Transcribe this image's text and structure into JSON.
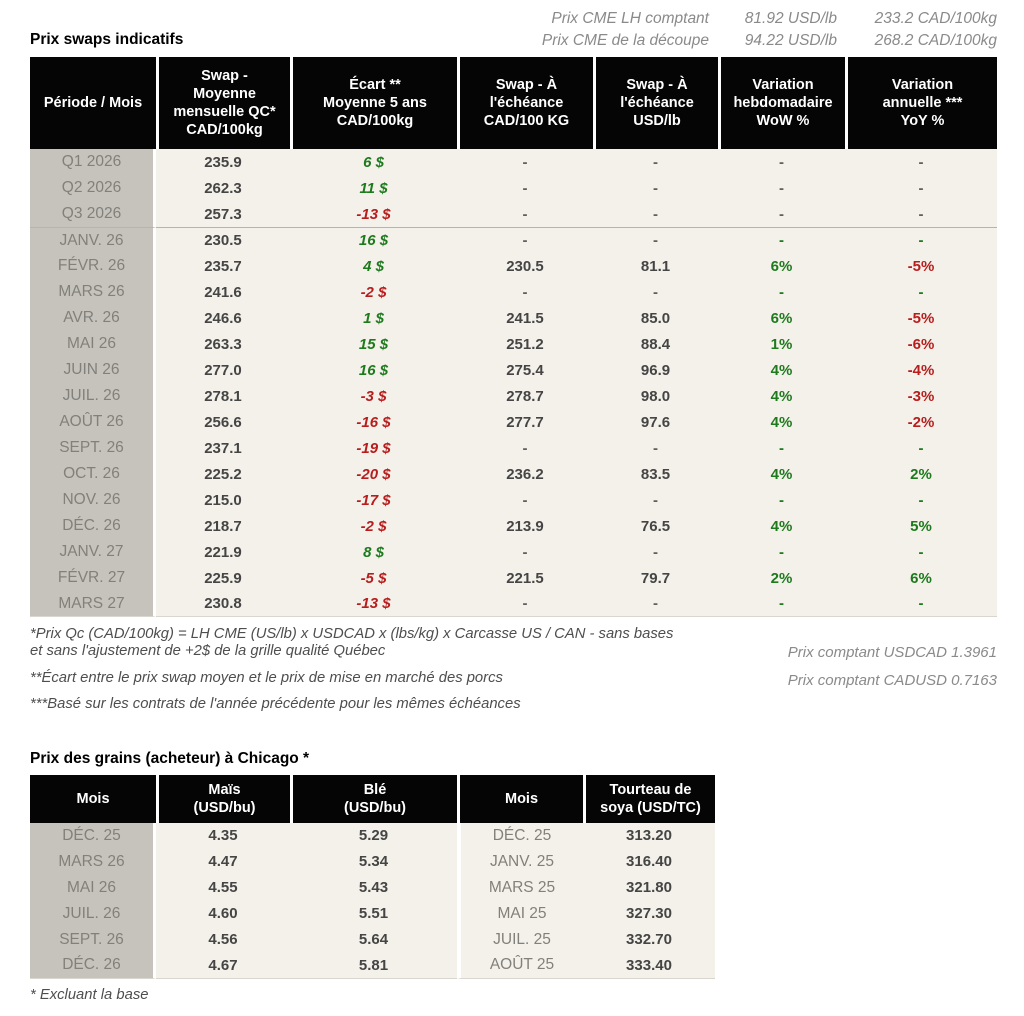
{
  "colors": {
    "header_bg": "#050505",
    "col_gray": "#c6c3bc",
    "cell_bg": "#f4f1ea",
    "green": "#1d7a1d",
    "red": "#b81d1d"
  },
  "cme": {
    "rows": [
      {
        "label": "Prix CME LH comptant",
        "usd": "81.92 USD/lb",
        "cad": "233.2 CAD/100kg"
      },
      {
        "label": "Prix CME de la découpe",
        "usd": "94.22 USD/lb",
        "cad": "268.2 CAD/100kg"
      }
    ]
  },
  "swaps": {
    "title": "Prix swaps indicatifs",
    "headers": [
      "Période / Mois",
      "Swap -\nMoyenne\nmensuelle QC*\nCAD/100kg",
      "Écart **\nMoyenne 5 ans\nCAD/100kg",
      "Swap - À\nl'échéance\nCAD/100 KG",
      "Swap - À\nl'échéance\nUSD/lb",
      "Variation\nhebdomadaire\nWoW %",
      "Variation\nannuelle ***\nYoY %"
    ],
    "rows": [
      {
        "period": "Q1 2026",
        "avg": "235.9",
        "ecart": "6 $",
        "ecart_color": "green",
        "cad": "-",
        "usd": "-",
        "wow": "-",
        "wow_color": "gray",
        "yoy": "-",
        "yoy_color": "gray",
        "separator": false
      },
      {
        "period": "Q2 2026",
        "avg": "262.3",
        "ecart": "11 $",
        "ecart_color": "green",
        "cad": "-",
        "usd": "-",
        "wow": "-",
        "wow_color": "gray",
        "yoy": "-",
        "yoy_color": "gray",
        "separator": false
      },
      {
        "period": "Q3 2026",
        "avg": "257.3",
        "ecart": "-13 $",
        "ecart_color": "red",
        "cad": "-",
        "usd": "-",
        "wow": "-",
        "wow_color": "gray",
        "yoy": "-",
        "yoy_color": "gray",
        "separator": false
      },
      {
        "period": "JANV. 26",
        "avg": "230.5",
        "ecart": "16 $",
        "ecart_color": "green",
        "cad": "-",
        "usd": "-",
        "wow": "-",
        "wow_color": "green",
        "yoy": "-",
        "yoy_color": "green",
        "separator": true
      },
      {
        "period": "FÉVR. 26",
        "avg": "235.7",
        "ecart": "4 $",
        "ecart_color": "green",
        "cad": "230.5",
        "usd": "81.1",
        "wow": "6%",
        "wow_color": "green",
        "yoy": "-5%",
        "yoy_color": "red",
        "separator": false
      },
      {
        "period": "MARS 26",
        "avg": "241.6",
        "ecart": "-2 $",
        "ecart_color": "red",
        "cad": "-",
        "usd": "-",
        "wow": "-",
        "wow_color": "green",
        "yoy": "-",
        "yoy_color": "green",
        "separator": false
      },
      {
        "period": "AVR. 26",
        "avg": "246.6",
        "ecart": "1 $",
        "ecart_color": "green",
        "cad": "241.5",
        "usd": "85.0",
        "wow": "6%",
        "wow_color": "green",
        "yoy": "-5%",
        "yoy_color": "red",
        "separator": false
      },
      {
        "period": "MAI 26",
        "avg": "263.3",
        "ecart": "15 $",
        "ecart_color": "green",
        "cad": "251.2",
        "usd": "88.4",
        "wow": "1%",
        "wow_color": "green",
        "yoy": "-6%",
        "yoy_color": "red",
        "separator": false
      },
      {
        "period": "JUIN 26",
        "avg": "277.0",
        "ecart": "16 $",
        "ecart_color": "green",
        "cad": "275.4",
        "usd": "96.9",
        "wow": "4%",
        "wow_color": "green",
        "yoy": "-4%",
        "yoy_color": "red",
        "separator": false
      },
      {
        "period": "JUIL. 26",
        "avg": "278.1",
        "ecart": "-3 $",
        "ecart_color": "red",
        "cad": "278.7",
        "usd": "98.0",
        "wow": "4%",
        "wow_color": "green",
        "yoy": "-3%",
        "yoy_color": "red",
        "separator": false
      },
      {
        "period": "AOÛT 26",
        "avg": "256.6",
        "ecart": "-16 $",
        "ecart_color": "red",
        "cad": "277.7",
        "usd": "97.6",
        "wow": "4%",
        "wow_color": "green",
        "yoy": "-2%",
        "yoy_color": "red",
        "separator": false
      },
      {
        "period": "SEPT. 26",
        "avg": "237.1",
        "ecart": "-19 $",
        "ecart_color": "red",
        "cad": "-",
        "usd": "-",
        "wow": "-",
        "wow_color": "green",
        "yoy": "-",
        "yoy_color": "green",
        "separator": false
      },
      {
        "period": "OCT. 26",
        "avg": "225.2",
        "ecart": "-20 $",
        "ecart_color": "red",
        "cad": "236.2",
        "usd": "83.5",
        "wow": "4%",
        "wow_color": "green",
        "yoy": "2%",
        "yoy_color": "green",
        "separator": false
      },
      {
        "period": "NOV. 26",
        "avg": "215.0",
        "ecart": "-17 $",
        "ecart_color": "red",
        "cad": "-",
        "usd": "-",
        "wow": "-",
        "wow_color": "green",
        "yoy": "-",
        "yoy_color": "green",
        "separator": false
      },
      {
        "period": "DÉC. 26",
        "avg": "218.7",
        "ecart": "-2 $",
        "ecart_color": "red",
        "cad": "213.9",
        "usd": "76.5",
        "wow": "4%",
        "wow_color": "green",
        "yoy": "5%",
        "yoy_color": "green",
        "separator": false
      },
      {
        "period": "JANV. 27",
        "avg": "221.9",
        "ecart": "8 $",
        "ecart_color": "green",
        "cad": "-",
        "usd": "-",
        "wow": "-",
        "wow_color": "green",
        "yoy": "-",
        "yoy_color": "green",
        "separator": false
      },
      {
        "period": "FÉVR. 27",
        "avg": "225.9",
        "ecart": "-5 $",
        "ecart_color": "red",
        "cad": "221.5",
        "usd": "79.7",
        "wow": "2%",
        "wow_color": "green",
        "yoy": "6%",
        "yoy_color": "green",
        "separator": false
      },
      {
        "period": "MARS 27",
        "avg": "230.8",
        "ecart": "-13 $",
        "ecart_color": "red",
        "cad": "-",
        "usd": "-",
        "wow": "-",
        "wow_color": "green",
        "yoy": "-",
        "yoy_color": "green",
        "separator": false
      }
    ]
  },
  "footnotes": {
    "note1": "*Prix Qc (CAD/100kg) = LH CME (US/lb) x USDCAD x (lbs/kg) x Carcasse US / CAN - sans bases\net sans l'ajustement de +2$ de la grille qualité Québec",
    "note2": "**Écart entre le prix swap moyen et le prix de mise en marché des porcs",
    "note3": "***Basé sur les contrats de l'année précédente pour les mêmes échéances",
    "fx_usdcad": "Prix comptant USDCAD 1.3961",
    "fx_cadusd": "Prix comptant CADUSD 0.7163"
  },
  "grains": {
    "title": "Prix des grains (acheteur) à Chicago *",
    "headers": [
      "Mois",
      "Maïs\n(USD/bu)",
      "Blé\n(USD/bu)",
      "Mois",
      "Tourteau de\nsoya (USD/TC)"
    ],
    "rows": [
      {
        "month": "DÉC. 25",
        "corn": "4.35",
        "wheat": "5.29",
        "month2": "DÉC. 25",
        "soy": "313.20"
      },
      {
        "month": "MARS 26",
        "corn": "4.47",
        "wheat": "5.34",
        "month2": "JANV. 25",
        "soy": "316.40"
      },
      {
        "month": "MAI 26",
        "corn": "4.55",
        "wheat": "5.43",
        "month2": "MARS 25",
        "soy": "321.80"
      },
      {
        "month": "JUIL. 26",
        "corn": "4.60",
        "wheat": "5.51",
        "month2": "MAI 25",
        "soy": "327.30"
      },
      {
        "month": "SEPT. 26",
        "corn": "4.56",
        "wheat": "5.64",
        "month2": "JUIL. 25",
        "soy": "332.70"
      },
      {
        "month": "DÉC. 26",
        "corn": "4.67",
        "wheat": "5.81",
        "month2": "AOÛT 25",
        "soy": "333.40"
      }
    ],
    "footnote": "* Excluant la base"
  }
}
